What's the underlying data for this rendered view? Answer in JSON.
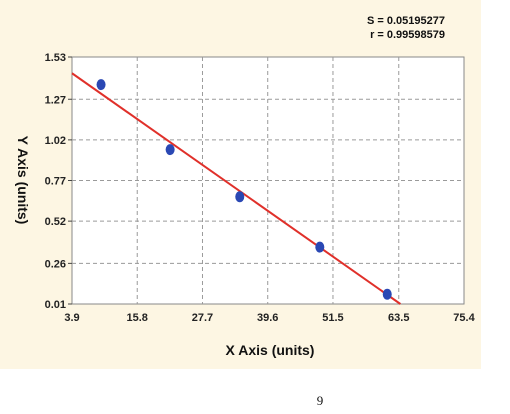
{
  "chart_data": {
    "type": "scatter",
    "title": "",
    "xlabel": "X Axis (units)",
    "ylabel": "Y Axis (units)",
    "xlim": [
      3.9,
      75.4
    ],
    "ylim": [
      0.01,
      1.53
    ],
    "x_tick_labels": [
      "3.9",
      "15.8",
      "27.7",
      "39.6",
      "51.5",
      "63.5",
      "75.4"
    ],
    "x_ticks": [
      3.9,
      15.8,
      27.7,
      39.6,
      51.5,
      63.5,
      75.4
    ],
    "y_tick_labels": [
      "0.01",
      "0.26",
      "0.52",
      "0.77",
      "1.02",
      "1.27",
      "1.53"
    ],
    "y_ticks": [
      0.01,
      0.26,
      0.52,
      0.77,
      1.02,
      1.27,
      1.53
    ],
    "grid": true,
    "legend": "none",
    "series": [
      {
        "x": [
          9.2,
          21.8,
          34.5,
          49.1,
          61.4
        ],
        "y": [
          1.36,
          0.96,
          0.67,
          0.36,
          0.07
        ],
        "color": "#2a48b4"
      }
    ],
    "fit_line": {
      "x": [
        3.9,
        63.8
      ],
      "y": [
        1.43,
        0.01
      ],
      "color": "#e0302a"
    },
    "stats": {
      "s": "S = 0.05195277",
      "r": "r = 0.99598579"
    }
  },
  "page_number": "9"
}
